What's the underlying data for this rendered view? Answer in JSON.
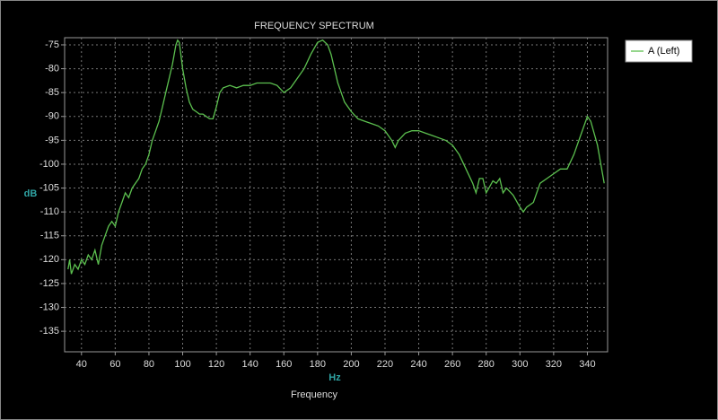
{
  "chart_data": {
    "type": "line",
    "title": "FREQUENCY SPECTRUM",
    "x_label": "Hz",
    "y_label": "dB",
    "footer": "Frequency",
    "x": [
      32,
      33,
      34,
      36,
      38,
      40,
      42,
      44,
      46,
      48,
      50,
      52,
      54,
      56,
      58,
      60,
      62,
      64,
      66,
      68,
      70,
      72,
      74,
      76,
      78,
      80,
      82,
      84,
      86,
      88,
      90,
      92,
      94,
      96,
      97,
      98,
      100,
      102,
      104,
      106,
      108,
      110,
      112,
      114,
      116,
      118,
      120,
      122,
      124,
      128,
      132,
      136,
      140,
      144,
      148,
      152,
      156,
      160,
      164,
      168,
      172,
      176,
      180,
      183,
      186,
      188,
      192,
      196,
      200,
      204,
      208,
      212,
      216,
      220,
      224,
      226,
      228,
      232,
      236,
      240,
      244,
      248,
      252,
      256,
      260,
      264,
      268,
      272,
      274,
      276,
      278,
      280,
      284,
      286,
      288,
      290,
      292,
      296,
      300,
      302,
      304,
      308,
      312,
      316,
      320,
      324,
      328,
      332,
      336,
      340,
      342,
      346,
      350
    ],
    "series": [
      {
        "name": "A (Left)",
        "color": "#5cc04f",
        "values": [
          -122,
          -120,
          -123,
          -121,
          -122,
          -120,
          -121,
          -119,
          -120,
          -118,
          -121,
          -117,
          -115,
          -113,
          -112,
          -113,
          -110,
          -108,
          -106,
          -107,
          -105,
          -104,
          -103,
          -101,
          -100,
          -98,
          -95,
          -93,
          -91,
          -88,
          -85,
          -82,
          -79,
          -75,
          -74,
          -74.5,
          -80,
          -84,
          -87,
          -88.5,
          -89,
          -89.5,
          -89.5,
          -90,
          -90.5,
          -90.5,
          -88,
          -85,
          -84,
          -83.5,
          -84,
          -83.5,
          -83.5,
          -83,
          -83,
          -83,
          -83.5,
          -85,
          -84,
          -82,
          -80,
          -77,
          -74.5,
          -74,
          -75,
          -77,
          -83,
          -87,
          -89,
          -90.5,
          -91,
          -91.5,
          -92,
          -93,
          -95,
          -96.5,
          -95,
          -93.5,
          -93,
          -93,
          -93.5,
          -94,
          -94.5,
          -95,
          -96,
          -98,
          -101,
          -104,
          -106,
          -103,
          -103,
          -106,
          -103.5,
          -104,
          -103,
          -106,
          -105,
          -106.5,
          -109,
          -110,
          -109,
          -108,
          -104,
          -103,
          -102,
          -101,
          -101,
          -98,
          -94,
          -90,
          -91,
          -96,
          -104
        ]
      }
    ],
    "xlim": [
      30,
      352
    ],
    "ylim": [
      -139.3,
      -73.5
    ],
    "xticks": [
      40,
      60,
      80,
      100,
      120,
      140,
      160,
      180,
      200,
      220,
      240,
      260,
      280,
      300,
      320,
      340
    ],
    "yticks": [
      -75,
      -80,
      -85,
      -90,
      -95,
      -100,
      -105,
      -110,
      -115,
      -120,
      -125,
      -130,
      -135
    ],
    "grid": true,
    "legend": "top-right"
  }
}
